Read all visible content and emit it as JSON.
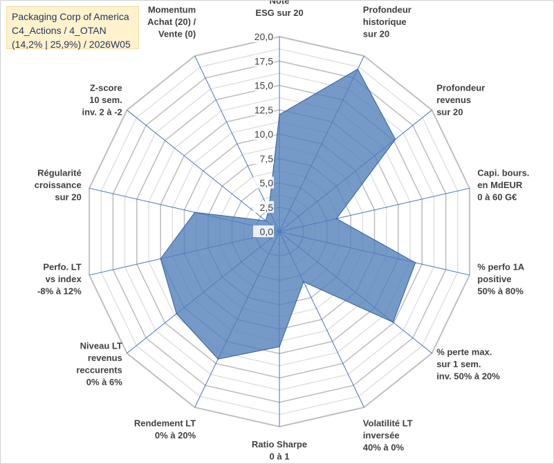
{
  "header": {
    "company": "Packaging Corp of America",
    "category": "C4_Actions / 4_OTAN",
    "stats": "(14,2% | 25,9%) / 2026W05"
  },
  "colors": {
    "fill": "#4f7eb8",
    "stroke": "#3e6ca8",
    "grid": "#c8c8c8",
    "spoke": "#4472c4",
    "title_bg": "#fff2cc",
    "title_text": "#1f3864"
  },
  "chart_data": {
    "type": "radar",
    "title": "",
    "rmin": 0,
    "rmax": 20,
    "ticks": [
      "0,0",
      "2,5",
      "5,0",
      "7,5",
      "10,0",
      "12,5",
      "15,0",
      "17,5",
      "20,0"
    ],
    "axes": [
      [
        "Note",
        "ESG sur 20"
      ],
      [
        "Profondeur",
        "historique",
        "sur 20"
      ],
      [
        "Profondeur",
        "revenus",
        "sur 20"
      ],
      [
        "Capi. bours.",
        "en MdEUR",
        "0 à 60 G€"
      ],
      [
        "% perfo 1A",
        "positive",
        "50% à 80%"
      ],
      [
        "% perte max.",
        "sur 1 sem.",
        "inv. 50% à 20%"
      ],
      [
        "Volatilité LT",
        "inversée",
        "40% à 0%"
      ],
      [
        "Ratio Sharpe",
        "0 à 1"
      ],
      [
        "Rendement LT",
        "0% à 20%"
      ],
      [
        "Niveau LT",
        "revenus",
        "reccurents",
        "0% à 6%"
      ],
      [
        "Perfo. LT",
        "vs index",
        "-8% à 12%"
      ],
      [
        "Régularité",
        "croissance",
        "sur 20"
      ],
      [
        "Z-score",
        "10 sem.",
        "inv. 2 à -2"
      ],
      [
        "Momentum",
        "Achat (20) /",
        "Vente (0)"
      ]
    ],
    "series": [
      {
        "name": "Packaging Corp of America",
        "values": [
          12,
          18.5,
          15.2,
          6,
          14.3,
          14.9,
          5.7,
          11.8,
          14.5,
          13.5,
          12.5,
          8.9,
          1.8,
          2.5
        ]
      }
    ]
  }
}
